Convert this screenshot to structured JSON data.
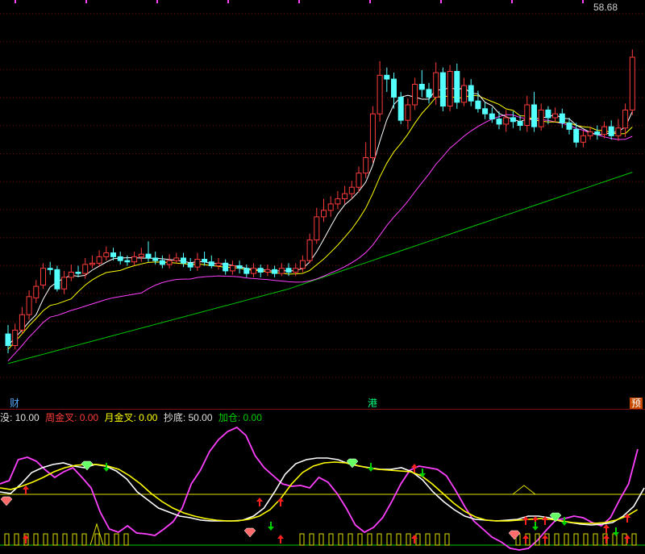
{
  "price_label": "58.68",
  "badges": {
    "cai": "财",
    "gang": "港",
    "yu": "预"
  },
  "indicator_bar": {
    "items": [
      {
        "label": "",
        "value": "10.00",
        "prefix": "没",
        "color": "#e0e0e0"
      },
      {
        "label": "周金叉: ",
        "value": "0.00",
        "color": "#ff3b3b"
      },
      {
        "label": "月金叉: ",
        "value": "0.00",
        "color": "#ffff00"
      },
      {
        "label": "抄底: ",
        "value": "50.00",
        "color": "#e0e0e0"
      },
      {
        "label": "加仓: ",
        "value": "0.00",
        "color": "#00d000"
      }
    ]
  },
  "colors": {
    "up": "#ff3b3b",
    "down": "#54ffff",
    "ma5": "#ffffff",
    "ma10": "#ffff00",
    "ma20": "#ff40ff",
    "ma60": "#00c800",
    "grid": "#7a1010"
  },
  "chart_data": {
    "type": "candlestick",
    "candles": [
      [
        3.5,
        2.6,
        4.2,
        2.0
      ],
      [
        2.6,
        3.8,
        4.3,
        2.3
      ],
      [
        3.8,
        5.0,
        5.6,
        3.5
      ],
      [
        5.0,
        6.4,
        6.9,
        4.6
      ],
      [
        6.3,
        7.2,
        7.7,
        5.9
      ],
      [
        7.3,
        8.6,
        9.0,
        7.0
      ],
      [
        8.6,
        8.5,
        9.1,
        8.1
      ],
      [
        8.5,
        7.0,
        8.8,
        6.8
      ],
      [
        7.0,
        7.9,
        8.4,
        6.6
      ],
      [
        7.9,
        8.3,
        8.9,
        7.6
      ],
      [
        8.3,
        8.2,
        8.8,
        7.9
      ],
      [
        8.2,
        8.9,
        9.4,
        7.8
      ],
      [
        8.9,
        9.0,
        9.6,
        8.6
      ],
      [
        9.0,
        9.5,
        10.0,
        8.7
      ],
      [
        9.5,
        9.8,
        10.3,
        9.2
      ],
      [
        9.8,
        9.5,
        10.2,
        9.2
      ],
      [
        9.5,
        9.2,
        9.9,
        8.9
      ],
      [
        9.2,
        9.1,
        9.6,
        8.8
      ],
      [
        9.1,
        9.5,
        9.9,
        8.8
      ],
      [
        9.5,
        9.7,
        10.2,
        9.1
      ],
      [
        9.7,
        9.4,
        10.7,
        9.1
      ],
      [
        9.4,
        9.2,
        9.9,
        8.9
      ],
      [
        9.2,
        8.9,
        9.6,
        8.6
      ],
      [
        8.9,
        9.2,
        9.7,
        8.6
      ],
      [
        9.2,
        9.4,
        9.8,
        9.0
      ],
      [
        9.4,
        9.0,
        9.8,
        8.7
      ],
      [
        9.0,
        8.7,
        9.4,
        8.4
      ],
      [
        8.7,
        9.3,
        9.8,
        8.4
      ],
      [
        9.3,
        9.1,
        9.9,
        8.8
      ],
      [
        9.1,
        8.8,
        9.6,
        8.6
      ],
      [
        8.8,
        9.0,
        9.4,
        8.5
      ],
      [
        9.0,
        8.4,
        9.3,
        8.1
      ],
      [
        8.4,
        8.8,
        9.2,
        8.1
      ],
      [
        8.8,
        8.6,
        9.2,
        8.2
      ],
      [
        8.6,
        8.2,
        8.9,
        7.9
      ],
      [
        8.2,
        8.6,
        9.0,
        7.9
      ],
      [
        8.6,
        8.3,
        8.9,
        7.9
      ],
      [
        8.3,
        8.5,
        8.9,
        8.0
      ],
      [
        8.5,
        8.2,
        8.8,
        7.9
      ],
      [
        8.2,
        8.6,
        9.0,
        8.0
      ],
      [
        8.6,
        8.3,
        9.0,
        8.0
      ],
      [
        8.3,
        8.6,
        9.0,
        8.0
      ],
      [
        8.6,
        9.2,
        9.6,
        8.3
      ],
      [
        9.2,
        10.8,
        11.3,
        9.0
      ],
      [
        10.8,
        12.6,
        13.3,
        10.5
      ],
      [
        12.6,
        13.1,
        14.0,
        12.2
      ],
      [
        13.1,
        13.6,
        14.2,
        12.6
      ],
      [
        13.6,
        14.0,
        14.6,
        13.2
      ],
      [
        14.0,
        14.4,
        15.0,
        13.6
      ],
      [
        14.4,
        14.9,
        15.4,
        14.0
      ],
      [
        14.9,
        16.0,
        16.5,
        14.5
      ],
      [
        16.0,
        17.2,
        18.4,
        15.6
      ],
      [
        17.2,
        20.6,
        21.2,
        16.8
      ],
      [
        20.6,
        23.6,
        24.7,
        20.0
      ],
      [
        23.6,
        23.3,
        24.2,
        22.3
      ],
      [
        23.3,
        21.9,
        23.8,
        21.0
      ],
      [
        21.9,
        20.1,
        22.3,
        19.8
      ],
      [
        20.1,
        21.3,
        21.8,
        19.4
      ],
      [
        21.3,
        22.9,
        23.4,
        20.9
      ],
      [
        22.9,
        22.5,
        24.0,
        21.9
      ],
      [
        22.5,
        21.9,
        23.0,
        21.4
      ],
      [
        21.9,
        23.8,
        24.6,
        21.3
      ],
      [
        23.8,
        21.2,
        24.2,
        20.8
      ],
      [
        21.2,
        23.9,
        24.4,
        20.8
      ],
      [
        23.9,
        21.5,
        24.5,
        21.0
      ],
      [
        21.5,
        22.8,
        23.4,
        21.2
      ],
      [
        22.8,
        21.6,
        23.3,
        21.2
      ],
      [
        21.6,
        21.0,
        22.4,
        20.7
      ],
      [
        21.0,
        20.6,
        21.5,
        20.2
      ],
      [
        20.6,
        20.2,
        21.1,
        19.9
      ],
      [
        20.2,
        19.8,
        20.8,
        19.4
      ],
      [
        19.8,
        20.3,
        20.9,
        19.2
      ],
      [
        20.3,
        20.0,
        20.8,
        19.5
      ],
      [
        20.0,
        19.7,
        20.5,
        19.3
      ],
      [
        19.7,
        21.3,
        22.0,
        19.2
      ],
      [
        21.3,
        19.6,
        22.3,
        19.2
      ],
      [
        19.6,
        20.9,
        21.4,
        19.3
      ],
      [
        20.9,
        20.3,
        21.2,
        19.8
      ],
      [
        20.3,
        20.6,
        21.1,
        20.0
      ],
      [
        20.6,
        19.9,
        21.0,
        19.5
      ],
      [
        19.9,
        19.4,
        20.3,
        19.0
      ],
      [
        19.4,
        18.4,
        19.9,
        18.0
      ],
      [
        18.4,
        18.9,
        19.3,
        18.0
      ],
      [
        18.9,
        19.2,
        19.6,
        18.6
      ],
      [
        19.2,
        19.0,
        19.7,
        18.6
      ],
      [
        19.0,
        19.6,
        20.0,
        18.7
      ],
      [
        19.6,
        18.9,
        20.1,
        18.6
      ],
      [
        18.9,
        19.5,
        20.2,
        18.5
      ],
      [
        19.5,
        20.9,
        21.4,
        18.8
      ],
      [
        20.9,
        25.0,
        25.6,
        20.5
      ]
    ]
  }
}
